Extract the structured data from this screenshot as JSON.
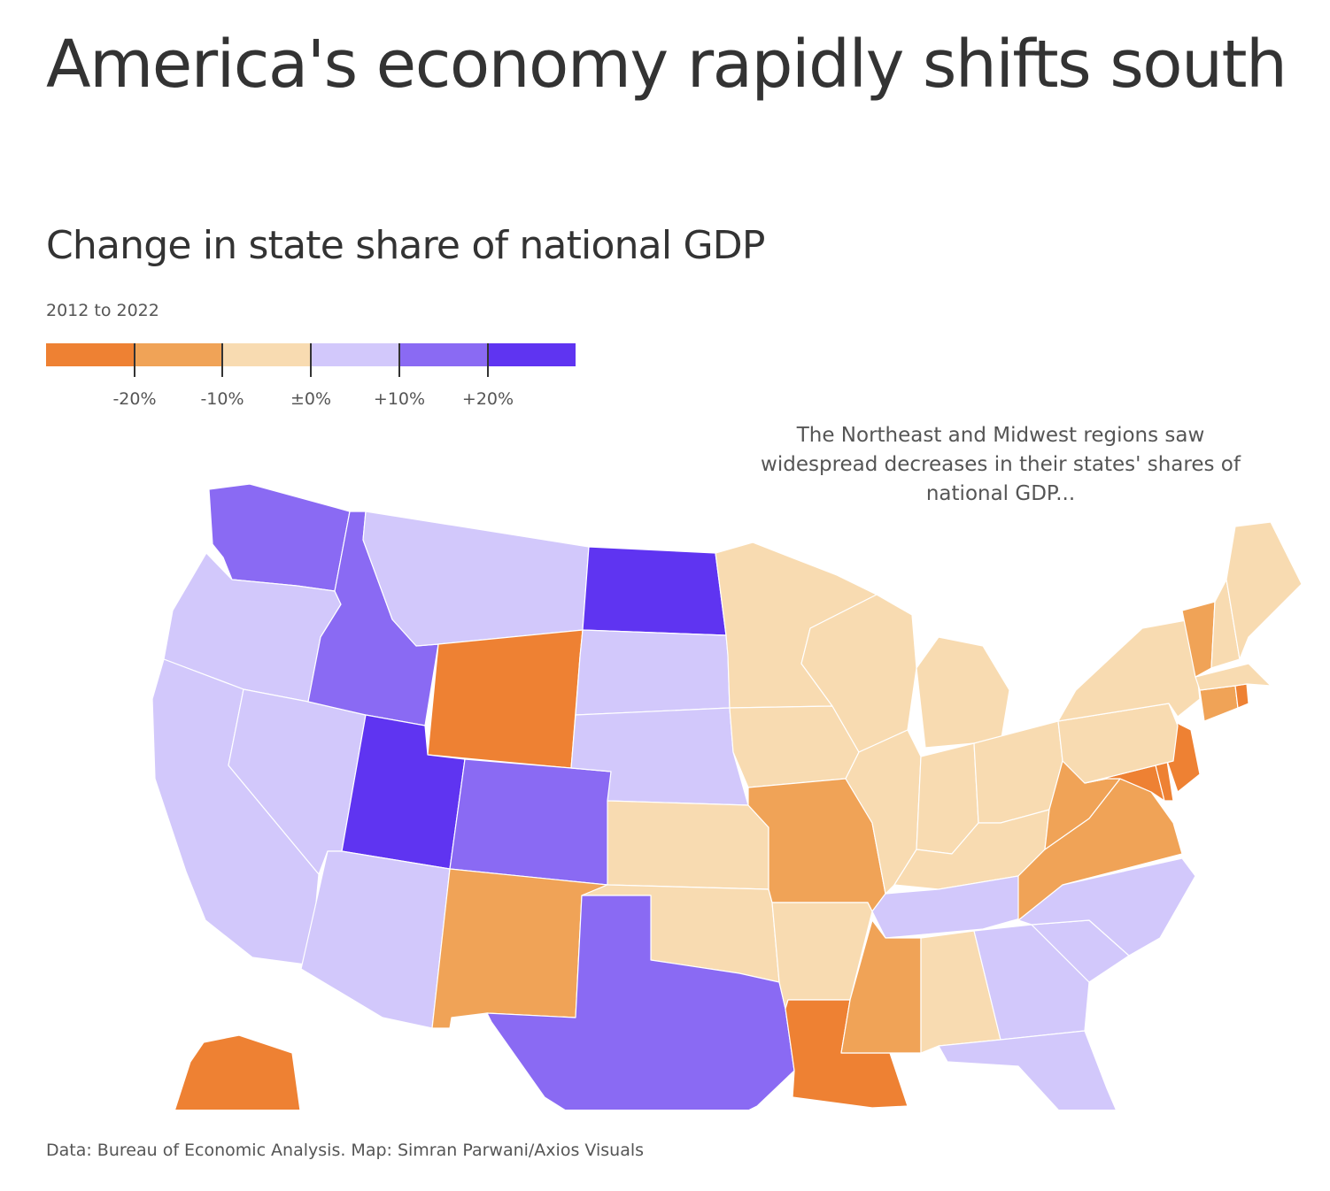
{
  "header": {
    "headline": "America's economy rapidly shifts south",
    "subtitle": "Change in state share of national GDP",
    "period": "2012 to 2022"
  },
  "legend": {
    "colors": [
      "#ee8133",
      "#f0a357",
      "#f8dbb1",
      "#d2c8fb",
      "#8a6af3",
      "#5f34f1"
    ],
    "labels": [
      "-20%",
      "-10%",
      "±0%",
      "+10%",
      "+20%"
    ]
  },
  "annotation": {
    "line1": "The Northeast and Midwest regions saw",
    "line2": "widespread decreases in their states' shares of",
    "line3": "national GDP..."
  },
  "map": {
    "states": [
      {
        "name": "Washington",
        "bin": 4
      },
      {
        "name": "Oregon",
        "bin": 3
      },
      {
        "name": "California",
        "bin": 3
      },
      {
        "name": "Nevada",
        "bin": 3
      },
      {
        "name": "Idaho",
        "bin": 4
      },
      {
        "name": "Montana",
        "bin": 3
      },
      {
        "name": "Wyoming",
        "bin": 0
      },
      {
        "name": "Utah",
        "bin": 5
      },
      {
        "name": "Arizona",
        "bin": 3
      },
      {
        "name": "Colorado",
        "bin": 4
      },
      {
        "name": "New Mexico",
        "bin": 1
      },
      {
        "name": "North Dakota",
        "bin": 5
      },
      {
        "name": "South Dakota",
        "bin": 3
      },
      {
        "name": "Nebraska",
        "bin": 3
      },
      {
        "name": "Kansas",
        "bin": 2
      },
      {
        "name": "Oklahoma",
        "bin": 2
      },
      {
        "name": "Texas",
        "bin": 4
      },
      {
        "name": "Minnesota",
        "bin": 2
      },
      {
        "name": "Iowa",
        "bin": 2
      },
      {
        "name": "Missouri",
        "bin": 1
      },
      {
        "name": "Arkansas",
        "bin": 2
      },
      {
        "name": "Louisiana",
        "bin": 0
      },
      {
        "name": "Wisconsin",
        "bin": 2
      },
      {
        "name": "Illinois",
        "bin": 2
      },
      {
        "name": "Michigan",
        "bin": 2
      },
      {
        "name": "Indiana",
        "bin": 2
      },
      {
        "name": "Ohio",
        "bin": 2
      },
      {
        "name": "Kentucky",
        "bin": 2
      },
      {
        "name": "Tennessee",
        "bin": 3
      },
      {
        "name": "Mississippi",
        "bin": 1
      },
      {
        "name": "Alabama",
        "bin": 2
      },
      {
        "name": "Georgia",
        "bin": 3
      },
      {
        "name": "Florida",
        "bin": 3
      },
      {
        "name": "South Carolina",
        "bin": 3
      },
      {
        "name": "North Carolina",
        "bin": 3
      },
      {
        "name": "Virginia",
        "bin": 1
      },
      {
        "name": "West Virginia",
        "bin": 1
      },
      {
        "name": "Maryland",
        "bin": 0
      },
      {
        "name": "Delaware",
        "bin": 0
      },
      {
        "name": "New Jersey",
        "bin": 0
      },
      {
        "name": "Pennsylvania",
        "bin": 2
      },
      {
        "name": "New York",
        "bin": 2
      },
      {
        "name": "Connecticut",
        "bin": 1
      },
      {
        "name": "Rhode Island",
        "bin": 0
      },
      {
        "name": "Massachusetts",
        "bin": 2
      },
      {
        "name": "Vermont",
        "bin": 1
      },
      {
        "name": "New Hampshire",
        "bin": 2
      },
      {
        "name": "Maine",
        "bin": 2
      },
      {
        "name": "Alaska",
        "bin": 0
      }
    ]
  },
  "footer": {
    "source": "Data: Bureau of Economic Analysis. Map: Simran Parwani/Axios Visuals"
  }
}
